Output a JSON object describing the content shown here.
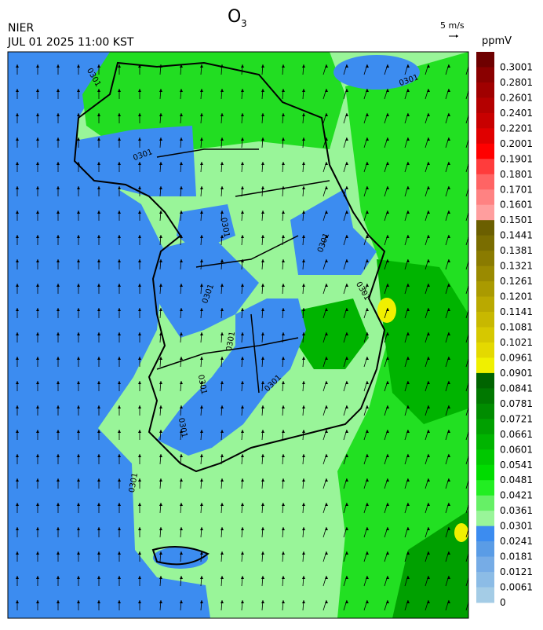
{
  "header": {
    "title": "O",
    "title_subscript": "3",
    "agency": "NIER",
    "datetime": "JUL 01 2025 11:00 KST",
    "wind_scale": "5 m/s",
    "unit": "ppmV"
  },
  "colorbar": {
    "labels": [
      "0.3001",
      "0.2801",
      "0.2601",
      "0.2401",
      "0.2201",
      "0.2001",
      "0.1901",
      "0.1801",
      "0.1701",
      "0.1601",
      "0.1501",
      "0.1441",
      "0.1381",
      "0.1321",
      "0.1261",
      "0.1201",
      "0.1141",
      "0.1081",
      "0.1021",
      "0.0961",
      "0.0901",
      "0.0841",
      "0.0781",
      "0.0721",
      "0.0661",
      "0.0601",
      "0.0541",
      "0.0481",
      "0.0421",
      "0.0361",
      "0.0301",
      "0.0241",
      "0.0181",
      "0.0121",
      "0.0061",
      "0"
    ],
    "colors": [
      "#6e0000",
      "#8a0000",
      "#a00000",
      "#b40000",
      "#c80000",
      "#e00000",
      "#ff0000",
      "#ff3c3c",
      "#ff6464",
      "#ff8282",
      "#ff9e9e",
      "#6b5f00",
      "#7a6d00",
      "#8a7b00",
      "#9a8a00",
      "#aa9a00",
      "#baa900",
      "#c8b800",
      "#d6c800",
      "#e4d900",
      "#f0f000",
      "#006400",
      "#007800",
      "#008c00",
      "#00a000",
      "#00b400",
      "#00c800",
      "#00dc00",
      "#22ee22",
      "#66f066",
      "#99f599",
      "#3c8cf0",
      "#5a9ce6",
      "#76ace6",
      "#8cbce6",
      "#a4cce6"
    ]
  },
  "contour_labels": [
    "0301",
    "0301",
    "0301",
    "0301",
    "0301",
    "0301",
    "0301",
    "0301",
    "0301",
    "0301",
    "0301",
    "0301"
  ]
}
